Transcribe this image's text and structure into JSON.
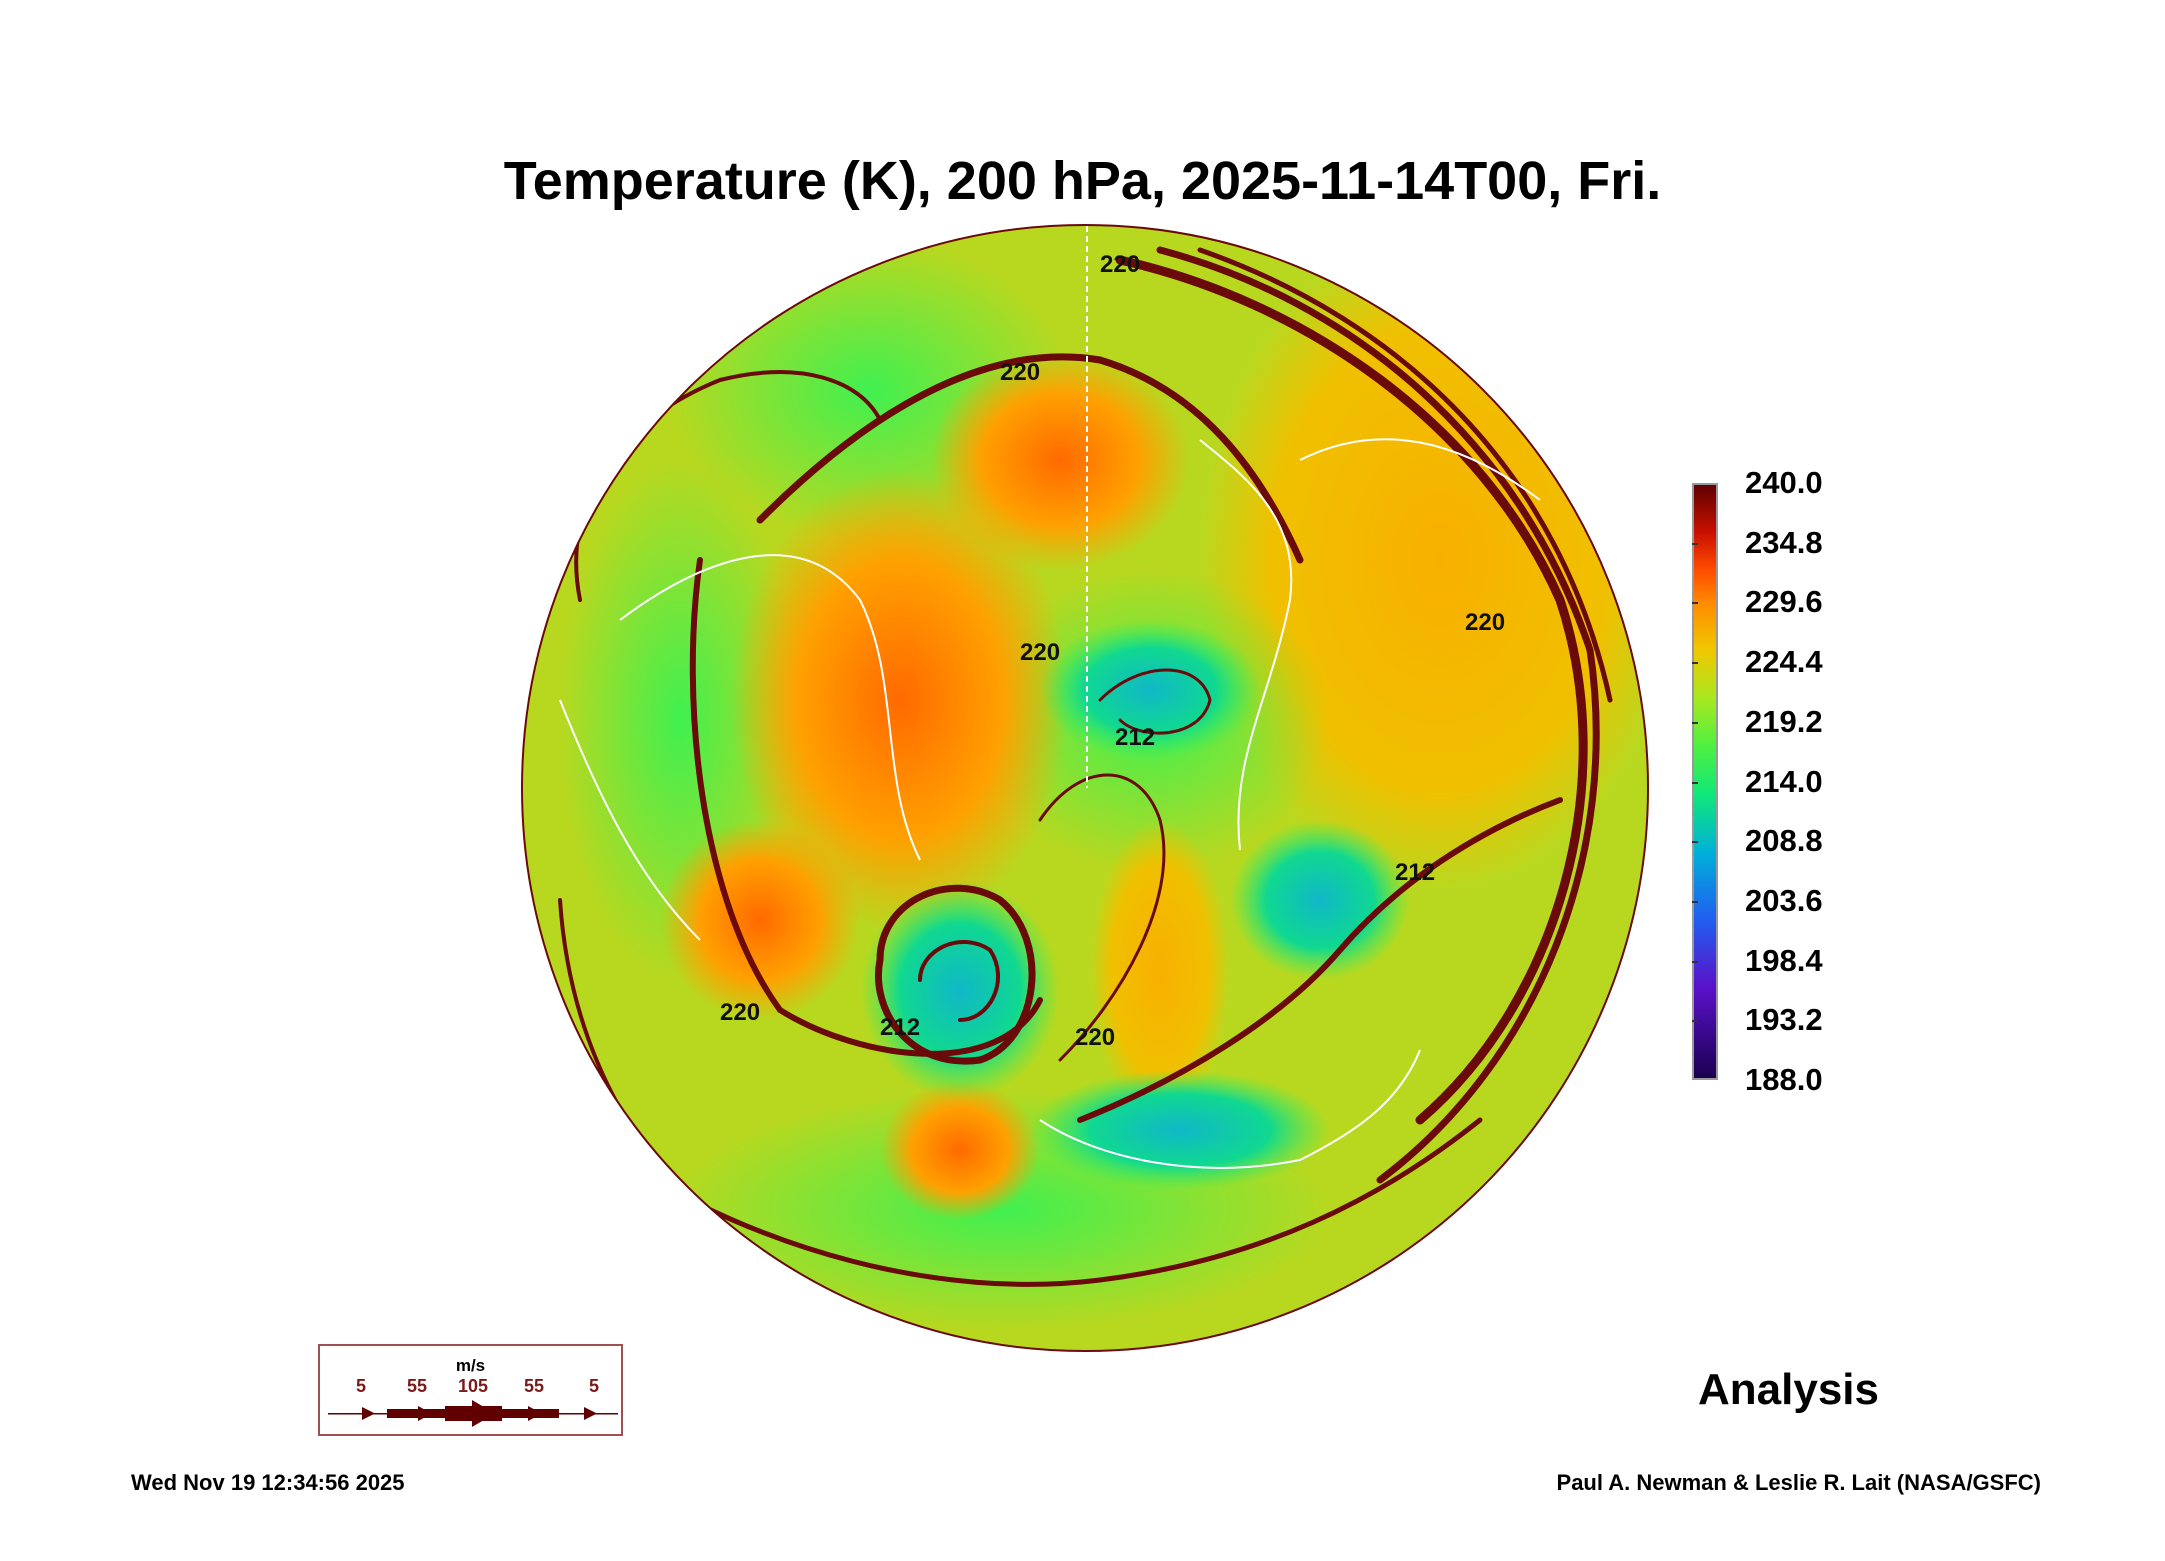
{
  "title": "Temperature (K), 200 hPa, 2025-11-14T00, Fri.",
  "chart_data": {
    "type": "heatmap",
    "projection": "north polar stereographic",
    "variable": "Temperature (K)",
    "level": "200 hPa",
    "colorbar": {
      "min": 188.0,
      "max": 240.0,
      "ticks": [
        "240.0",
        "234.8",
        "229.6",
        "224.4",
        "219.2",
        "214.0",
        "208.8",
        "203.6",
        "198.4",
        "193.2",
        "188.0"
      ]
    },
    "contour_labels": [
      "220",
      "220",
      "220",
      "212",
      "212",
      "220",
      "220",
      "212",
      "220"
    ],
    "wind_legend": {
      "unit": "m/s",
      "values": [
        "5",
        "55",
        "105",
        "55",
        "5"
      ]
    }
  },
  "analysis_label": "Analysis",
  "datestamp": "Wed Nov 19 12:34:56 2025",
  "credit": "Paul A. Newman & Leslie R. Lait (NASA/GSFC)",
  "colors": {
    "streamline": "#6a0a0a",
    "coast": "#ffffff"
  }
}
